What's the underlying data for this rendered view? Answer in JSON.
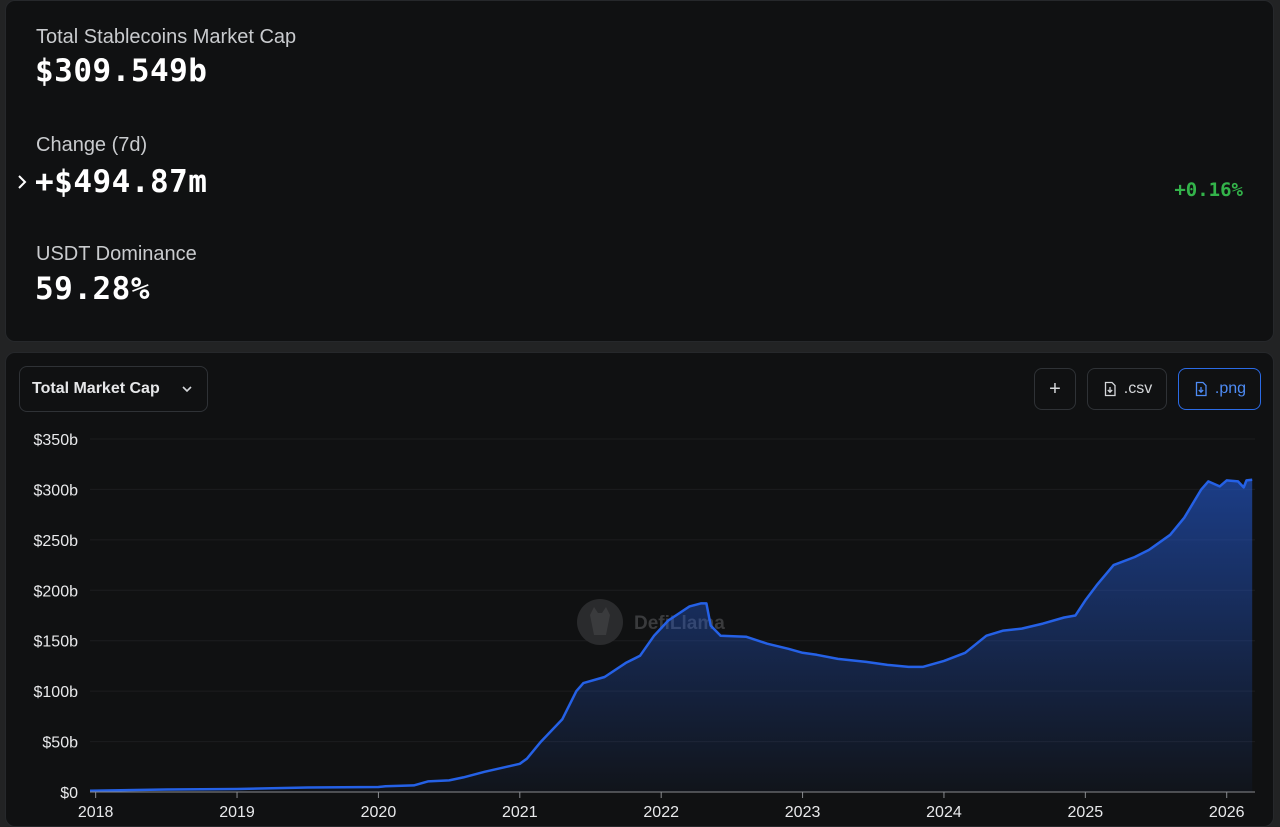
{
  "stats": {
    "total_label": "Total Stablecoins Market Cap",
    "total_value": "$309.549b",
    "change_label": "Change (7d)",
    "change_value": "+$494.87m",
    "change_pct": "+0.16%",
    "dominance_label": "USDT Dominance",
    "dominance_value": "59.28%"
  },
  "toolbar": {
    "select_label": "Total Market Cap",
    "add_label": "+",
    "csv_label": ".csv",
    "png_label": ".png"
  },
  "watermark": "DefiLlama",
  "colors": {
    "line": "#2561e6",
    "positive": "#33b34a",
    "accent": "#2b6be6"
  },
  "chart_data": {
    "type": "area",
    "title": "",
    "xlabel": "",
    "ylabel": "",
    "ylim": [
      0,
      350
    ],
    "y_unit": "b (USD billions)",
    "y_ticks": [
      "$0",
      "$50b",
      "$100b",
      "$150b",
      "$200b",
      "$250b",
      "$300b",
      "$350b"
    ],
    "x_ticks": [
      "2018",
      "2019",
      "2020",
      "2021",
      "2022",
      "2023",
      "2024",
      "2025",
      "2026"
    ],
    "grid": true,
    "legend": "none",
    "series": [
      {
        "values_format": "[year fraction, USD billions]",
        "points": [
          [
            2017.96,
            1.3
          ],
          [
            2018.5,
            2.5
          ],
          [
            2019.0,
            3.0
          ],
          [
            2019.5,
            4.5
          ],
          [
            2019.75,
            4.8
          ],
          [
            2020.0,
            5.0
          ],
          [
            2020.05,
            5.8
          ],
          [
            2020.25,
            6.5
          ],
          [
            2020.35,
            10.5
          ],
          [
            2020.5,
            11.5
          ],
          [
            2020.6,
            14.5
          ],
          [
            2020.75,
            20.0
          ],
          [
            2021.0,
            28.0
          ],
          [
            2021.05,
            33.0
          ],
          [
            2021.15,
            50.0
          ],
          [
            2021.3,
            72.0
          ],
          [
            2021.4,
            100.0
          ],
          [
            2021.45,
            108.0
          ],
          [
            2021.6,
            114.0
          ],
          [
            2021.75,
            128.0
          ],
          [
            2021.85,
            135.0
          ],
          [
            2021.95,
            155.0
          ],
          [
            2022.05,
            170.0
          ],
          [
            2022.2,
            184.0
          ],
          [
            2022.28,
            187.0
          ],
          [
            2022.32,
            187.0
          ],
          [
            2022.35,
            165.0
          ],
          [
            2022.42,
            155.0
          ],
          [
            2022.6,
            154.0
          ],
          [
            2022.75,
            147.0
          ],
          [
            2022.9,
            142.0
          ],
          [
            2023.0,
            138.0
          ],
          [
            2023.1,
            136.0
          ],
          [
            2023.25,
            132.0
          ],
          [
            2023.45,
            129.0
          ],
          [
            2023.6,
            126.0
          ],
          [
            2023.75,
            124.0
          ],
          [
            2023.85,
            124.0
          ],
          [
            2024.0,
            130.0
          ],
          [
            2024.15,
            138.0
          ],
          [
            2024.3,
            155.0
          ],
          [
            2024.42,
            160.0
          ],
          [
            2024.55,
            162.0
          ],
          [
            2024.7,
            167.0
          ],
          [
            2024.85,
            173.0
          ],
          [
            2024.93,
            175.0
          ],
          [
            2025.0,
            190.0
          ],
          [
            2025.08,
            205.0
          ],
          [
            2025.2,
            225.0
          ],
          [
            2025.35,
            233.0
          ],
          [
            2025.45,
            240.0
          ],
          [
            2025.6,
            255.0
          ],
          [
            2025.7,
            272.0
          ],
          [
            2025.82,
            300.0
          ],
          [
            2025.87,
            308.0
          ],
          [
            2025.95,
            303.0
          ],
          [
            2026.0,
            309.0
          ],
          [
            2026.08,
            308.0
          ],
          [
            2026.12,
            302.0
          ],
          [
            2026.14,
            309.0
          ],
          [
            2026.18,
            309.5
          ]
        ]
      }
    ]
  }
}
